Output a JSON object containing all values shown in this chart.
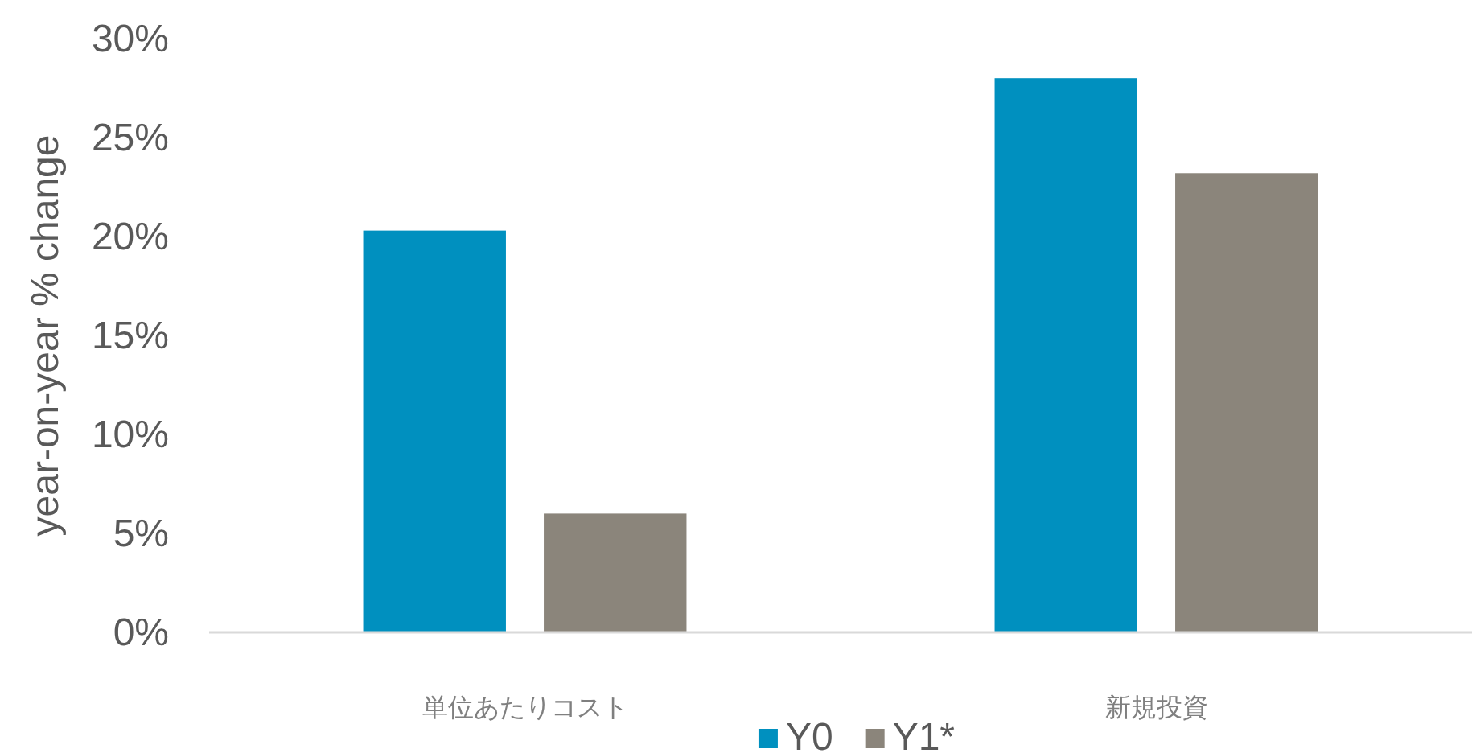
{
  "chart_data": {
    "type": "bar",
    "ylabel": "year-on-year % change",
    "categories": [
      "単位あたりコスト",
      "新規投資"
    ],
    "series": [
      {
        "name": "Y0",
        "color": "#0090bf",
        "values": [
          20.3,
          28.0
        ]
      },
      {
        "name": "Y1*",
        "color": "#8b857b",
        "values": [
          6.0,
          23.2
        ]
      }
    ],
    "ylim": [
      0,
      30
    ],
    "yticks": [
      {
        "value": 0,
        "label": "0%"
      },
      {
        "value": 5,
        "label": "5%"
      },
      {
        "value": 10,
        "label": "10%"
      },
      {
        "value": 15,
        "label": "15%"
      },
      {
        "value": 20,
        "label": "20%"
      },
      {
        "value": 25,
        "label": "25%"
      },
      {
        "value": 30,
        "label": "30%"
      }
    ],
    "grid": false,
    "legend": "bottom"
  }
}
